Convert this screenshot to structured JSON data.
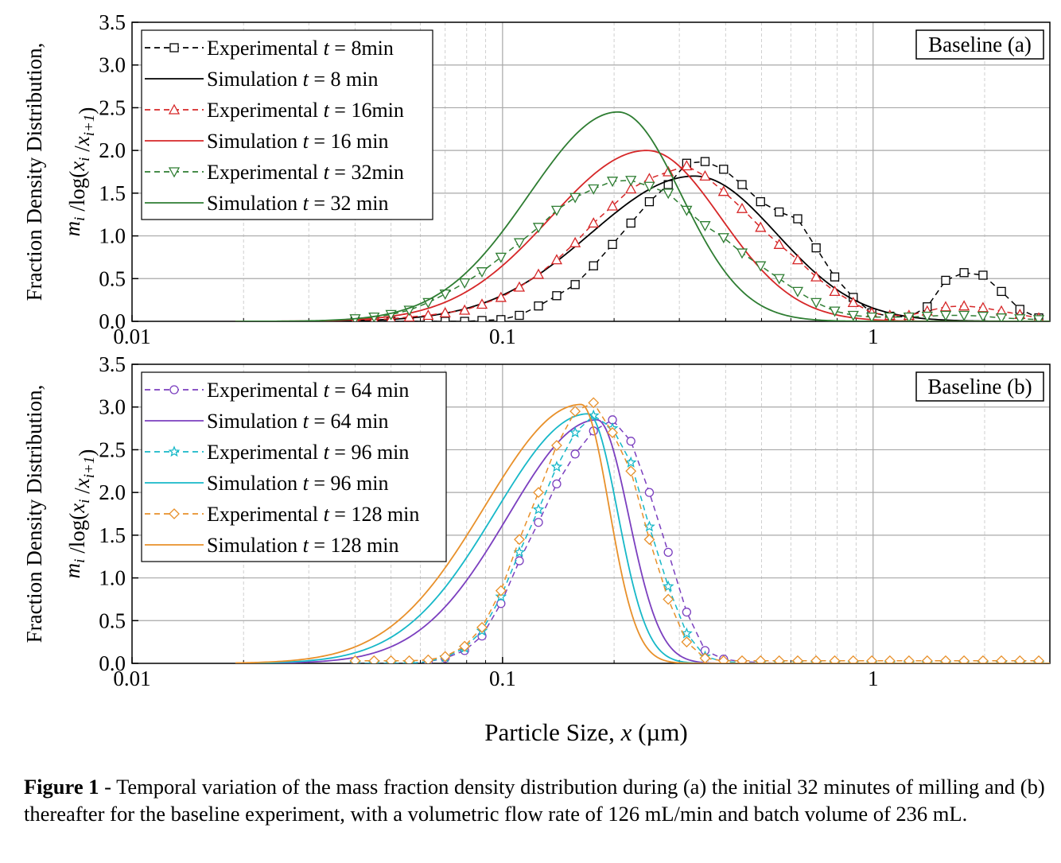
{
  "figure": {
    "xlabel": "Particle Size, x (µm)",
    "ylabel_line1": "Fraction Density Distribution,",
    "ylabel_line2": "m_i /log(x_i /x_i+1)",
    "x_ticks": [
      "0.01",
      "0.1",
      "1"
    ],
    "y_ticks": [
      "0.0",
      "0.5",
      "1.0",
      "1.5",
      "2.0",
      "2.5",
      "3.0",
      "3.5"
    ],
    "caption_bold": "Figure 1",
    "caption_text": " - Temporal variation of the mass fraction density distribution during (a) the initial 32 minutes of milling and (b) thereafter for the baseline experiment, with a volumetric flow rate of 126 mL/min and batch volume of 236 mL."
  },
  "chart_data": [
    {
      "type": "line",
      "title": "Baseline (a)",
      "xscale": "log",
      "xlim": [
        0.01,
        3.0
      ],
      "ylim": [
        0,
        3.5
      ],
      "grid": true,
      "legend_position": "top-left",
      "series": [
        {
          "name": "Experimental t = 8min",
          "legend": [
            "Experimental ",
            "t",
            " = 8min"
          ],
          "color": "#000000",
          "style": "dashed",
          "marker": "square",
          "x": [
            0.04,
            0.045,
            0.05,
            0.056,
            0.063,
            0.07,
            0.079,
            0.088,
            0.099,
            0.111,
            0.125,
            0.14,
            0.157,
            0.176,
            0.198,
            0.222,
            0.249,
            0.28,
            0.314,
            0.352,
            0.395,
            0.443,
            0.497,
            0.558,
            0.626,
            0.702,
            0.788,
            0.884,
            0.992,
            1.11,
            1.25,
            1.4,
            1.57,
            1.76,
            1.98,
            2.22,
            2.49,
            2.8
          ],
          "y": [
            0,
            0,
            0,
            0,
            0,
            0,
            0,
            0.01,
            0.02,
            0.07,
            0.18,
            0.3,
            0.43,
            0.65,
            0.9,
            1.15,
            1.4,
            1.6,
            1.85,
            1.87,
            1.78,
            1.6,
            1.4,
            1.28,
            1.2,
            0.86,
            0.52,
            0.28,
            0.1,
            0.06,
            0.05,
            0.17,
            0.48,
            0.57,
            0.54,
            0.35,
            0.14,
            0.04
          ]
        },
        {
          "name": "Simulation t = 8 min",
          "legend": [
            "Simulation ",
            "t",
            " = 8 min"
          ],
          "color": "#000000",
          "style": "solid",
          "peak": 0.33,
          "height": 1.7,
          "left_width": 0.28,
          "right_width": 0.22
        },
        {
          "name": "Experimental t = 16min",
          "legend": [
            "Experimental ",
            "t",
            " = 16min"
          ],
          "color": "#d62728",
          "style": "dashed",
          "marker": "triangle-up",
          "x": [
            0.04,
            0.045,
            0.05,
            0.056,
            0.063,
            0.07,
            0.079,
            0.088,
            0.099,
            0.111,
            0.125,
            0.14,
            0.157,
            0.176,
            0.198,
            0.222,
            0.249,
            0.28,
            0.314,
            0.352,
            0.395,
            0.443,
            0.497,
            0.558,
            0.626,
            0.702,
            0.788,
            0.884,
            0.992,
            1.11,
            1.25,
            1.4,
            1.57,
            1.76,
            1.98,
            2.22,
            2.49,
            2.8
          ],
          "y": [
            0.01,
            0.02,
            0.03,
            0.05,
            0.07,
            0.1,
            0.13,
            0.2,
            0.28,
            0.4,
            0.55,
            0.72,
            0.92,
            1.15,
            1.35,
            1.55,
            1.67,
            1.75,
            1.82,
            1.7,
            1.52,
            1.32,
            1.1,
            0.9,
            0.72,
            0.52,
            0.35,
            0.22,
            0.1,
            0.07,
            0.07,
            0.12,
            0.17,
            0.18,
            0.16,
            0.12,
            0.08,
            0.04
          ]
        },
        {
          "name": "Simulation t = 16 min",
          "legend": [
            "Simulation ",
            "t",
            " = 16 min"
          ],
          "color": "#d62728",
          "style": "solid",
          "peak": 0.245,
          "height": 2.0,
          "left_width": 0.26,
          "right_width": 0.2
        },
        {
          "name": "Experimental t = 32min",
          "legend": [
            "Experimental ",
            "t",
            " = 32min"
          ],
          "color": "#2e7d32",
          "style": "dashed",
          "marker": "triangle-down",
          "x": [
            0.04,
            0.045,
            0.05,
            0.056,
            0.063,
            0.07,
            0.079,
            0.088,
            0.099,
            0.111,
            0.125,
            0.14,
            0.157,
            0.176,
            0.198,
            0.222,
            0.249,
            0.28,
            0.314,
            0.352,
            0.395,
            0.443,
            0.497,
            0.558,
            0.626,
            0.702,
            0.788,
            0.884,
            0.992,
            1.11,
            1.25,
            1.4,
            1.57,
            1.76,
            1.98,
            2.22,
            2.49,
            2.8
          ],
          "y": [
            0.03,
            0.05,
            0.08,
            0.13,
            0.22,
            0.32,
            0.45,
            0.58,
            0.75,
            0.92,
            1.1,
            1.3,
            1.45,
            1.55,
            1.64,
            1.65,
            1.58,
            1.5,
            1.3,
            1.12,
            0.98,
            0.8,
            0.65,
            0.5,
            0.35,
            0.22,
            0.12,
            0.07,
            0.05,
            0.05,
            0.05,
            0.06,
            0.07,
            0.07,
            0.06,
            0.04,
            0.03,
            0.02
          ]
        },
        {
          "name": "Simulation t = 32 min",
          "legend": [
            "Simulation ",
            "t",
            " = 32 min"
          ],
          "color": "#2e7d32",
          "style": "solid",
          "peak": 0.205,
          "height": 2.45,
          "left_width": 0.24,
          "right_width": 0.17
        }
      ]
    },
    {
      "type": "line",
      "title": "Baseline (b)",
      "xscale": "log",
      "xlim": [
        0.01,
        3.0
      ],
      "ylim": [
        0,
        3.5
      ],
      "grid": true,
      "legend_position": "top-left",
      "series": [
        {
          "name": "Experimental t = 64 min",
          "legend": [
            "Experimental ",
            "t",
            " = 64 min"
          ],
          "color": "#7b3fbf",
          "style": "dashed",
          "marker": "circle",
          "x": [
            0.04,
            0.045,
            0.05,
            0.056,
            0.063,
            0.07,
            0.079,
            0.088,
            0.099,
            0.111,
            0.125,
            0.14,
            0.157,
            0.176,
            0.198,
            0.222,
            0.249,
            0.28,
            0.314,
            0.352,
            0.395,
            0.443,
            0.497,
            0.558,
            0.626,
            0.702,
            0.788,
            0.884,
            0.992,
            1.11,
            1.25,
            1.4,
            1.57,
            1.76,
            1.98,
            2.22,
            2.49,
            2.8
          ],
          "y": [
            0,
            0,
            0,
            0,
            0.02,
            0.06,
            0.15,
            0.32,
            0.7,
            1.2,
            1.65,
            2.1,
            2.45,
            2.72,
            2.85,
            2.6,
            2.0,
            1.3,
            0.6,
            0.15,
            0.05,
            0.02,
            0.01,
            0,
            0,
            0,
            0,
            0,
            0,
            0,
            0,
            0,
            0,
            0,
            0,
            0,
            0,
            0
          ]
        },
        {
          "name": "Simulation t = 64 min",
          "legend": [
            "Simulation ",
            "t",
            " = 64 min"
          ],
          "color": "#7b3fbf",
          "style": "solid",
          "peak": 0.18,
          "height": 2.85,
          "left_width": 0.24,
          "right_width": 0.085
        },
        {
          "name": "Experimental t = 96 min",
          "legend": [
            "Experimental ",
            "t",
            " = 96 min"
          ],
          "color": "#17b8c8",
          "style": "dashed",
          "marker": "star",
          "x": [
            0.04,
            0.045,
            0.05,
            0.056,
            0.063,
            0.07,
            0.079,
            0.088,
            0.099,
            0.111,
            0.125,
            0.14,
            0.157,
            0.176,
            0.198,
            0.222,
            0.249,
            0.28,
            0.314,
            0.352,
            0.395,
            0.443,
            0.497,
            0.558,
            0.626,
            0.702,
            0.788,
            0.884,
            0.992,
            1.11,
            1.25,
            1.4,
            1.57,
            1.76,
            1.98,
            2.22,
            2.49,
            2.8
          ],
          "y": [
            0,
            0,
            0,
            0,
            0.02,
            0.07,
            0.18,
            0.38,
            0.78,
            1.3,
            1.8,
            2.3,
            2.7,
            2.9,
            2.75,
            2.35,
            1.6,
            0.9,
            0.35,
            0.08,
            0.02,
            0.01,
            0,
            0,
            0,
            0,
            0,
            0,
            0,
            0,
            0,
            0,
            0,
            0,
            0,
            0,
            0,
            0
          ]
        },
        {
          "name": "Simulation t = 96 min",
          "legend": [
            "Simulation ",
            "t",
            " = 96 min"
          ],
          "color": "#17b8c8",
          "style": "solid",
          "peak": 0.17,
          "height": 2.92,
          "left_width": 0.25,
          "right_width": 0.08
        },
        {
          "name": "Experimental t = 128 min",
          "legend": [
            "Experimental ",
            "t",
            " = 128 min"
          ],
          "color": "#e8902a",
          "style": "dashed",
          "marker": "diamond",
          "x": [
            0.04,
            0.045,
            0.05,
            0.056,
            0.063,
            0.07,
            0.079,
            0.088,
            0.099,
            0.111,
            0.125,
            0.14,
            0.157,
            0.176,
            0.198,
            0.222,
            0.249,
            0.28,
            0.314,
            0.352,
            0.395,
            0.443,
            0.497,
            0.558,
            0.626,
            0.702,
            0.788,
            0.884,
            0.992,
            1.11,
            1.25,
            1.4,
            1.57,
            1.76,
            1.98,
            2.22,
            2.49,
            2.8
          ],
          "y": [
            0.03,
            0.03,
            0.03,
            0.03,
            0.04,
            0.08,
            0.2,
            0.42,
            0.85,
            1.45,
            2.0,
            2.55,
            2.95,
            3.05,
            2.7,
            2.25,
            1.45,
            0.75,
            0.25,
            0.06,
            0.03,
            0.03,
            0.03,
            0.03,
            0.03,
            0.03,
            0.03,
            0.03,
            0.03,
            0.03,
            0.03,
            0.03,
            0.03,
            0.03,
            0.03,
            0.03,
            0.03,
            0.03
          ]
        },
        {
          "name": "Simulation t = 128 min",
          "legend": [
            "Simulation ",
            "t",
            " = 128 min"
          ],
          "color": "#e8902a",
          "style": "solid",
          "peak": 0.163,
          "height": 3.03,
          "left_width": 0.26,
          "right_width": 0.075
        }
      ]
    }
  ]
}
